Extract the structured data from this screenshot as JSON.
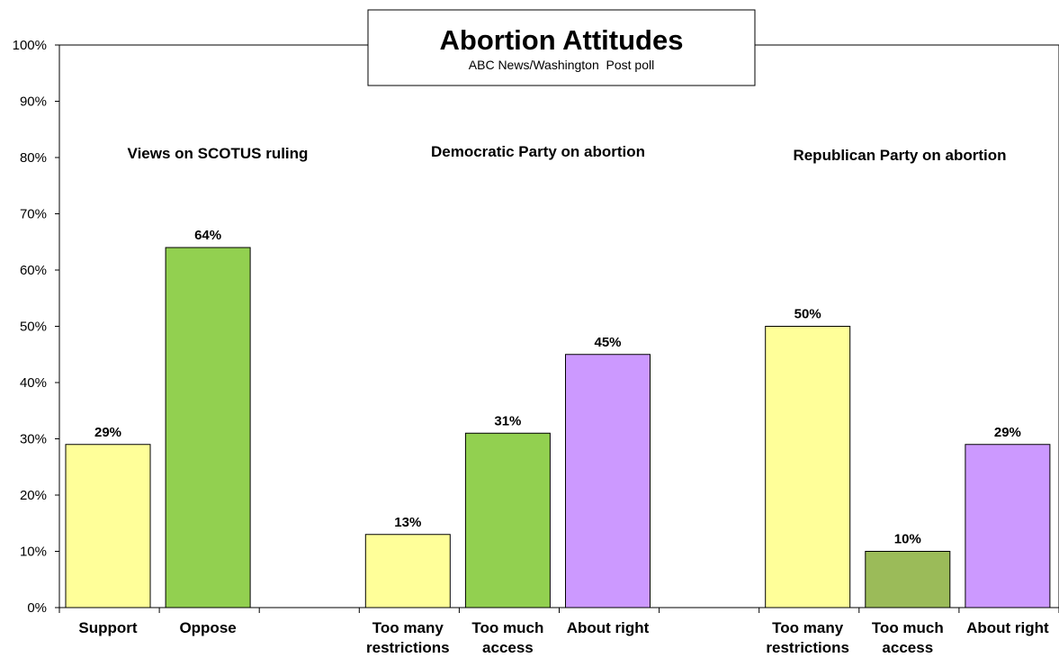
{
  "chart_data": {
    "type": "bar",
    "title": "Abortion Attitudes",
    "subtitle": "ABC News/Washington  Post poll",
    "ylim": [
      0,
      100
    ],
    "y_ticks": [
      "0%",
      "10%",
      "20%",
      "30%",
      "40%",
      "50%",
      "60%",
      "70%",
      "80%",
      "90%",
      "100%"
    ],
    "grid": false,
    "unit": "%",
    "groups": [
      {
        "label": "Views on SCOTUS ruling",
        "bars": [
          {
            "label": [
              "Support"
            ],
            "value": 29,
            "color": "#FFFF99"
          },
          {
            "label": [
              "Oppose"
            ],
            "value": 64,
            "color": "#92D050"
          }
        ]
      },
      {
        "label": "Democratic Party on abortion",
        "bars": [
          {
            "label": [
              "Too many",
              "restrictions"
            ],
            "value": 13,
            "color": "#FFFF99"
          },
          {
            "label": [
              "Too much",
              "access"
            ],
            "value": 31,
            "color": "#92D050"
          },
          {
            "label": [
              "About right"
            ],
            "value": 45,
            "color": "#CC99FF"
          }
        ]
      },
      {
        "label": "Republican Party on abortion",
        "bars": [
          {
            "label": [
              "Too many",
              "restrictions"
            ],
            "value": 50,
            "color": "#FFFF99"
          },
          {
            "label": [
              "Too much",
              "access"
            ],
            "value": 10,
            "color": "#9BBB59"
          },
          {
            "label": [
              "About right"
            ],
            "value": 29,
            "color": "#CC99FF"
          }
        ]
      }
    ]
  }
}
